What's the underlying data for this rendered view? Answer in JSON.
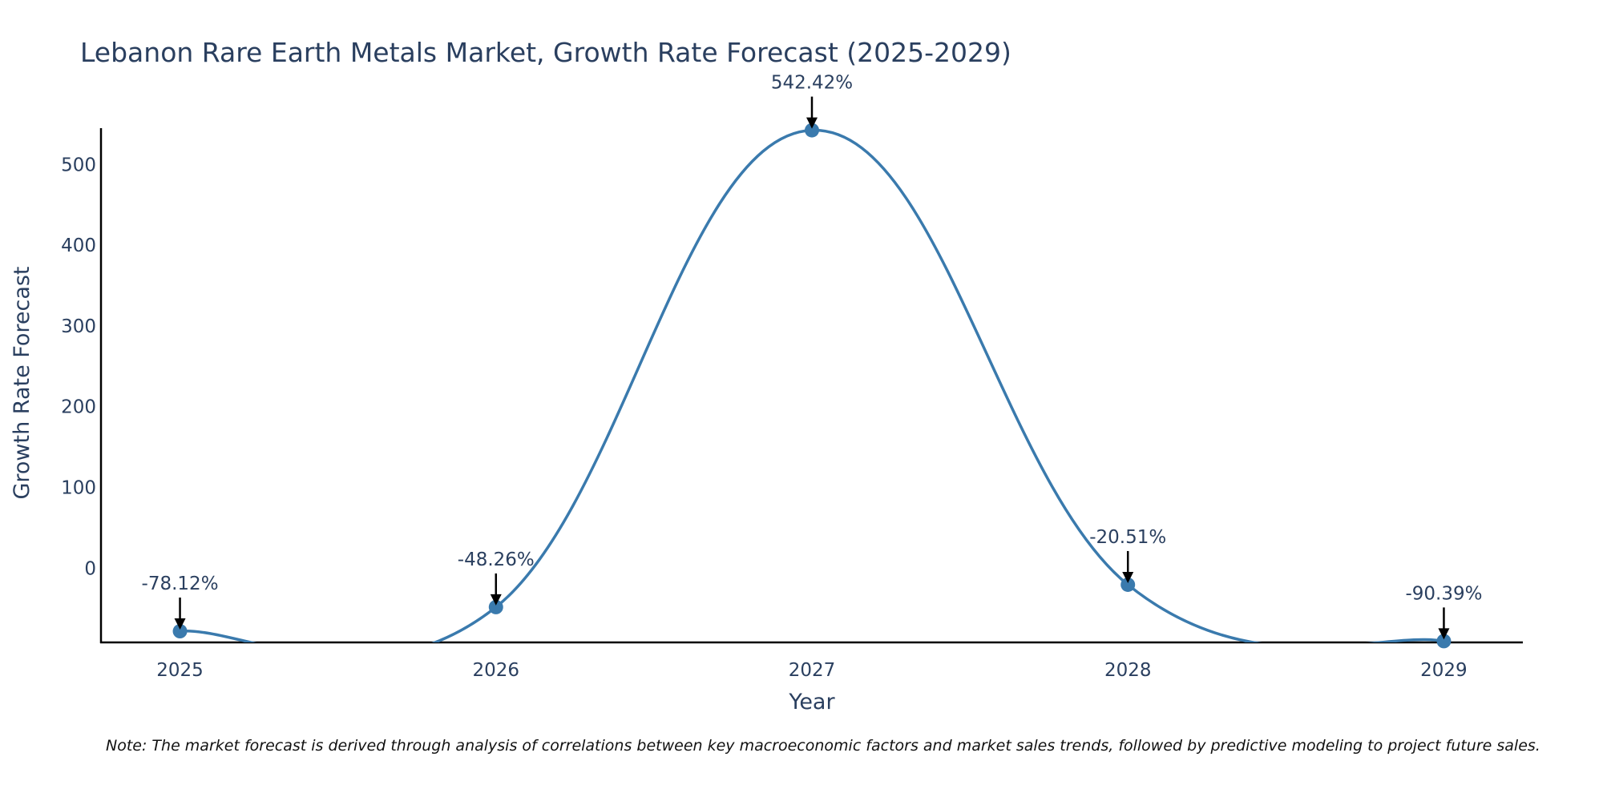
{
  "chart_data": {
    "type": "line",
    "title": "Lebanon Rare Earth Metals Market, Growth Rate Forecast (2025-2029)",
    "xlabel": "Year",
    "ylabel": "Growth Rate Forecast",
    "categories": [
      "2025",
      "2026",
      "2027",
      "2028",
      "2029"
    ],
    "x": [
      2025,
      2026,
      2027,
      2028,
      2029
    ],
    "values": [
      -78.12,
      -48.26,
      542.42,
      -20.51,
      -90.39
    ],
    "annotations": [
      "-78.12%",
      "-48.26%",
      "542.42%",
      "-20.51%",
      "-90.39%"
    ],
    "yticks": [
      0,
      100,
      200,
      300,
      400,
      500
    ],
    "ylim": [
      -92,
      545
    ],
    "xlim": [
      2024.75,
      2029.25
    ],
    "grid": false,
    "line_shape": "spline",
    "line_color": "#3a7aad",
    "marker_color": "#3a7aad",
    "note": "Note: The market forecast is derived through analysis of correlations between key macroeconomic factors and market sales trends, followed by predictive modeling to project future sales."
  }
}
